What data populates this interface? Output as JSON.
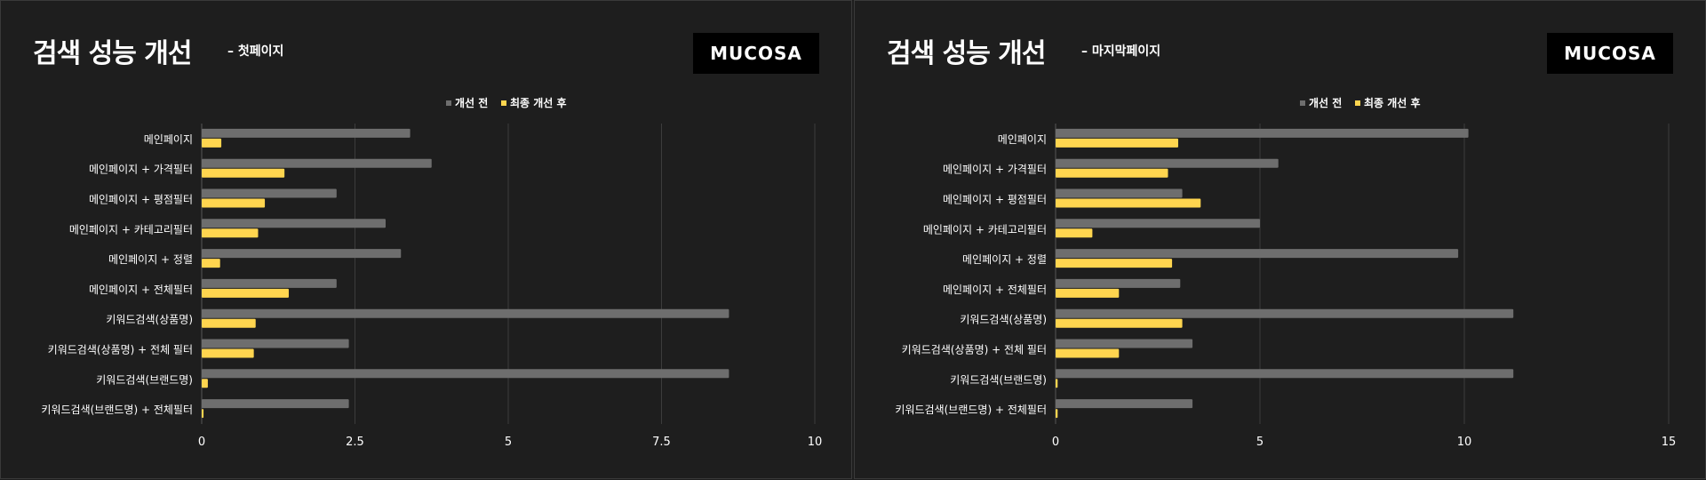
{
  "panels": [
    {
      "title": "검색 성능 개선",
      "subtitle": "– 첫페이지",
      "logo": "MUCOSA"
    },
    {
      "title": "검색 성능 개선",
      "subtitle": "– 마지막페이지",
      "logo": "MUCOSA"
    }
  ],
  "colors": {
    "background": "#1e1e1e",
    "before": "#6e6e6e",
    "after": "#ffd54f",
    "grid": "#3c3c3c"
  },
  "chart_data": [
    {
      "type": "bar",
      "orientation": "horizontal",
      "categories": [
        "메인페이지",
        "메인페이지 + 가격필터",
        "메인페이지 + 평점필터",
        "메인페이지 + 카테고리필터",
        "메인페이지 + 정렬",
        "메인페이지 + 전체필터",
        "키워드검색(상품명)",
        "키워드검색(상품명) + 전체 필터",
        "키워드검색(브랜드명)",
        "키워드검색(브랜드명) + 전체필터"
      ],
      "series": [
        {
          "name": "개선 전",
          "color": "#6e6e6e",
          "values": [
            3.4,
            3.75,
            2.2,
            3.0,
            3.25,
            2.2,
            8.6,
            2.4,
            8.6,
            2.4
          ]
        },
        {
          "name": "최종 개선 후",
          "color": "#ffd54f",
          "values": [
            0.32,
            1.35,
            1.03,
            0.92,
            0.3,
            1.42,
            0.88,
            0.85,
            0.1,
            0.03
          ]
        }
      ],
      "xlim": [
        0,
        10
      ],
      "xticks": [
        0,
        2.5,
        5,
        7.5,
        10
      ],
      "xtick_labels": [
        "0",
        "2.5",
        "5",
        "7.5",
        "10"
      ],
      "grid": true,
      "legend": "top-center"
    },
    {
      "type": "bar",
      "orientation": "horizontal",
      "categories": [
        "메인페이지",
        "메인페이지 + 가격필터",
        "메인페이지 + 평점필터",
        "메인페이지 + 카테고리필터",
        "메인페이지 + 정렬",
        "메인페이지 + 전체필터",
        "키워드검색(상품명)",
        "키워드검색(상품명) + 전체 필터",
        "키워드검색(브랜드명)",
        "키워드검색(브랜드명) + 전체필터"
      ],
      "series": [
        {
          "name": "개선 전",
          "color": "#6e6e6e",
          "values": [
            10.1,
            5.45,
            3.1,
            5.0,
            9.85,
            3.05,
            11.2,
            3.35,
            11.2,
            3.35
          ]
        },
        {
          "name": "최종 개선 후",
          "color": "#ffd54f",
          "values": [
            3.0,
            2.75,
            3.55,
            0.9,
            2.85,
            1.55,
            3.1,
            1.55,
            0.05,
            0.05
          ]
        }
      ],
      "xlim": [
        0,
        15
      ],
      "xticks": [
        0,
        5,
        10,
        15
      ],
      "xtick_labels": [
        "0",
        "5",
        "10",
        "15"
      ],
      "grid": true,
      "legend": "top-center"
    }
  ]
}
